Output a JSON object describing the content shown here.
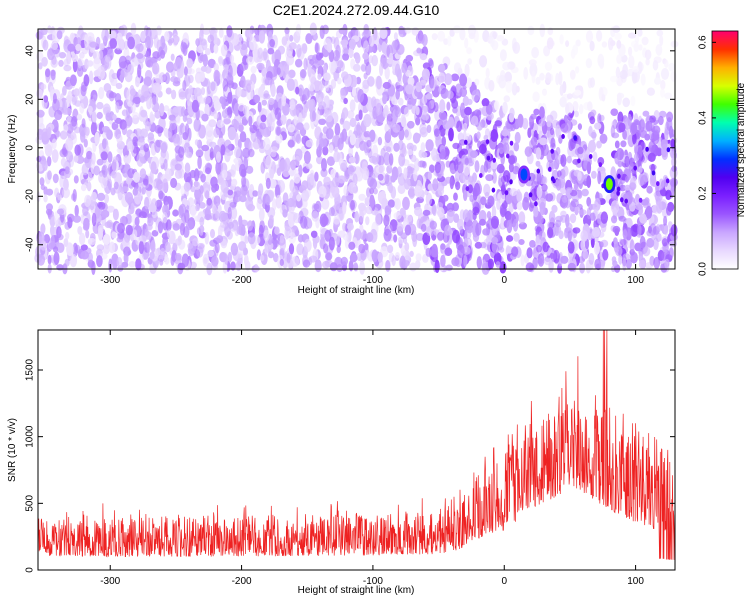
{
  "figure_title": "C2E1.2024.272.09.44.G10",
  "chart_data": [
    {
      "type": "heatmap",
      "title": "C2E1.2024.272.09.44.G10",
      "xlabel": "Height of straight line (km)",
      "ylabel": "Frequency (Hz)",
      "xlim": [
        -355,
        130
      ],
      "ylim": [
        -50,
        49
      ],
      "x_ticks": [
        -300,
        -200,
        -100,
        0,
        100
      ],
      "y_ticks": [
        -40,
        -20,
        0,
        20,
        40
      ],
      "x_tick_labels": [
        "-300",
        "-200",
        "-100",
        "0",
        "100"
      ],
      "y_tick_labels": [
        "-40",
        "-20",
        "0",
        "20",
        "40"
      ],
      "grid": false,
      "colorbar": {
        "label": "Normalized spectral amplitude",
        "range": [
          0.0,
          0.63
        ],
        "ticks": [
          0.0,
          0.2,
          0.4,
          0.6
        ],
        "tick_labels": [
          "0.0",
          "0.2",
          "0.4",
          "0.6"
        ],
        "colormap": [
          "#ffffff",
          "#e8d8ff",
          "#c9a6ff",
          "#9a55ff",
          "#7a1fff",
          "#5000f0",
          "#0030ff",
          "#00b0ff",
          "#00ffb0",
          "#40ff00",
          "#d8ff00",
          "#ffb000",
          "#ff3000",
          "#ff0070"
        ]
      },
      "features": {
        "vertical_gaps_km": [
          15,
          80
        ],
        "hotspots": [
          {
            "x": 15,
            "y": -11,
            "value": 0.3
          },
          {
            "x": 80,
            "y": -15,
            "value": 0.45
          }
        ]
      }
    },
    {
      "type": "line",
      "xlabel": "Height of straight line (km)",
      "ylabel": "SNR (10 * v/v)",
      "xlim": [
        -355,
        130
      ],
      "ylim": [
        0,
        1800
      ],
      "x_ticks": [
        -300,
        -200,
        -100,
        0,
        100
      ],
      "y_ticks": [
        0,
        500,
        1000,
        1500
      ],
      "x_tick_labels": [
        "-300",
        "-200",
        "-100",
        "0",
        "100"
      ],
      "y_tick_labels": [
        "0",
        "500",
        "1000",
        "1500"
      ],
      "grid": false,
      "color": "#ee2222",
      "envelope": {
        "x": [
          -355,
          -300,
          -200,
          -100,
          -50,
          -35,
          -25,
          0,
          25,
          50,
          65,
          80,
          100,
          115,
          130
        ],
        "base": [
          110,
          100,
          100,
          110,
          120,
          150,
          220,
          300,
          480,
          600,
          550,
          450,
          350,
          300,
          250
        ],
        "peak": [
          400,
          400,
          410,
          420,
          460,
          500,
          750,
          1000,
          1150,
          1300,
          1350,
          1280,
          1120,
          1020,
          900
        ]
      }
    }
  ]
}
